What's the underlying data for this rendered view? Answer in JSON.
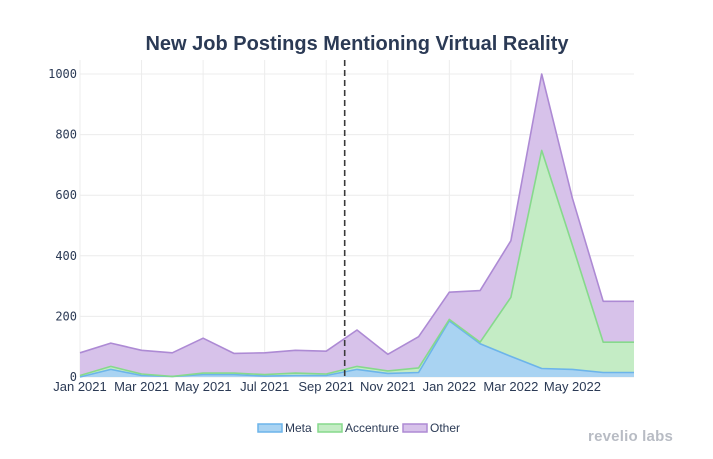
{
  "chart_data": {
    "type": "area",
    "stacked": true,
    "title": "New Job Postings Mentioning Virtual Reality",
    "xlabel": "",
    "ylabel": "",
    "ylim": [
      0,
      1000
    ],
    "yticks": [
      0,
      200,
      400,
      600,
      800,
      1000
    ],
    "xlim": [
      "2021-01",
      "2022-07"
    ],
    "xticks": [
      "Jan 2021",
      "Mar 2021",
      "May 2021",
      "Jul 2021",
      "Sep 2021",
      "Nov 2021",
      "Jan 2022",
      "Mar 2022",
      "May 2022"
    ],
    "x": [
      "2021-01",
      "2021-02",
      "2021-03",
      "2021-04",
      "2021-05",
      "2021-06",
      "2021-07",
      "2021-08",
      "2021-09",
      "2021-10",
      "2021-11",
      "2021-12",
      "2022-01",
      "2022-02",
      "2022-03",
      "2022-04",
      "2022-05",
      "2022-06",
      "2022-07"
    ],
    "series": [
      {
        "name": "Meta",
        "color": "#a9d3f2",
        "line_color": "#6cb4ea",
        "values": [
          0,
          25,
          5,
          2,
          8,
          8,
          3,
          5,
          5,
          25,
          12,
          15,
          185,
          110,
          68,
          28,
          25,
          15,
          15
        ]
      },
      {
        "name": "Accenture",
        "color": "#c4ecc5",
        "line_color": "#86d98c",
        "values": [
          5,
          10,
          5,
          0,
          5,
          5,
          5,
          8,
          5,
          10,
          8,
          15,
          5,
          5,
          195,
          720,
          410,
          100,
          100
        ]
      },
      {
        "name": "Other",
        "color": "#d7c2ea",
        "line_color": "#ad8ad4",
        "values": [
          75,
          77,
          78,
          78,
          115,
          65,
          72,
          75,
          75,
          120,
          55,
          103,
          90,
          170,
          187,
          252,
          155,
          135,
          135
        ]
      }
    ],
    "vertical_marker": {
      "x": "2021-10",
      "style": "dashed"
    },
    "grid": true,
    "legend_position": "bottom-center"
  },
  "brand": {
    "text": "revelio labs"
  }
}
